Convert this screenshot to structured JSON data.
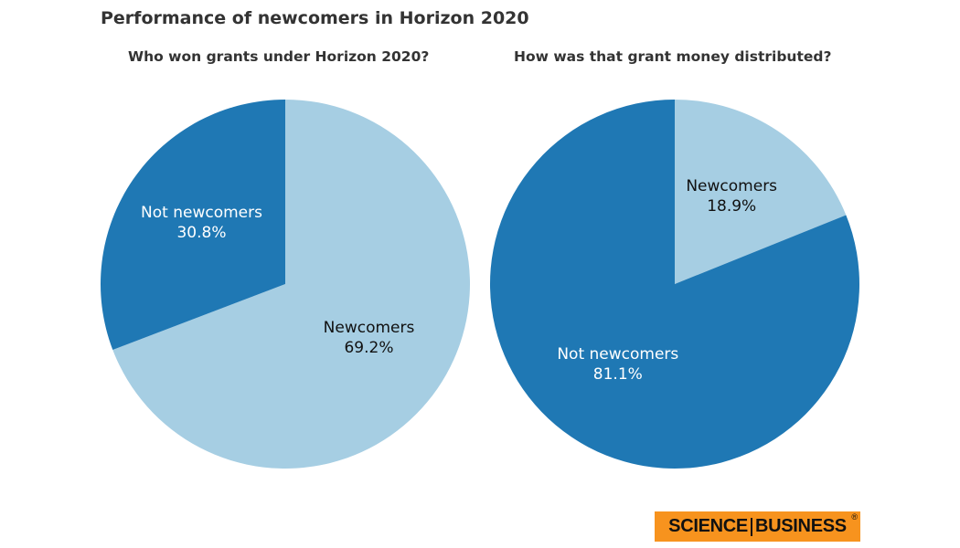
{
  "title": "Performance of newcomers in Horizon 2020",
  "logo": {
    "word1": "SCIENCE",
    "word2": "BUSINESS",
    "mark": "®",
    "background": "#f7931e"
  },
  "chart_data": [
    {
      "type": "pie",
      "title": "Who won grants under Horizon 2020?",
      "categories": [
        "Newcomers",
        "Not newcomers"
      ],
      "values": [
        69.2,
        30.8
      ],
      "labels": [
        "69.2%",
        "30.8%"
      ],
      "colors": [
        "#a6cee3",
        "#1f78b4"
      ],
      "label_colors": [
        "#111111",
        "#ffffff"
      ],
      "start": "12 o'clock",
      "direction": "clockwise",
      "legend": "none"
    },
    {
      "type": "pie",
      "title": "How was that grant money distributed?",
      "categories": [
        "Newcomers",
        "Not newcomers"
      ],
      "values": [
        18.9,
        81.1
      ],
      "labels": [
        "18.9%",
        "81.1%"
      ],
      "colors": [
        "#a6cee3",
        "#1f78b4"
      ],
      "label_colors": [
        "#111111",
        "#ffffff"
      ],
      "start": "12 o'clock",
      "direction": "clockwise",
      "legend": "none"
    }
  ]
}
